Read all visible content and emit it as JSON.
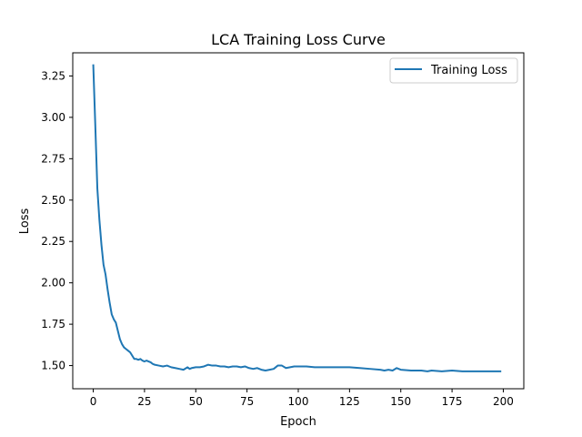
{
  "chart_data": {
    "type": "line",
    "title": "LCA Training Loss Curve",
    "xlabel": "Epoch",
    "ylabel": "Loss",
    "xlim": [
      -10,
      210
    ],
    "ylim": [
      1.36,
      3.39
    ],
    "xticks": [
      0,
      25,
      50,
      75,
      100,
      125,
      150,
      175,
      200
    ],
    "yticks": [
      1.5,
      1.75,
      2.0,
      2.25,
      2.5,
      2.75,
      3.0,
      3.25
    ],
    "xtick_labels": [
      "0",
      "25",
      "50",
      "75",
      "100",
      "125",
      "150",
      "175",
      "200"
    ],
    "ytick_labels": [
      "1.50",
      "1.75",
      "2.00",
      "2.25",
      "2.50",
      "2.75",
      "3.00",
      "3.25"
    ],
    "grid": false,
    "legend_position": "upper-right",
    "series": [
      {
        "name": "Training Loss",
        "color": "#1f77b4",
        "x": [
          0,
          1,
          2,
          3,
          4,
          5,
          6,
          7,
          8,
          9,
          10,
          11,
          12,
          13,
          14,
          15,
          16,
          17,
          18,
          19,
          20,
          21,
          22,
          23,
          24,
          25,
          26,
          27,
          28,
          29,
          30,
          32,
          34,
          36,
          38,
          40,
          42,
          44,
          46,
          47,
          48,
          50,
          52,
          54,
          56,
          58,
          60,
          62,
          64,
          66,
          68,
          70,
          72,
          74,
          76,
          78,
          80,
          82,
          84,
          86,
          88,
          90,
          92,
          94,
          96,
          98,
          100,
          104,
          108,
          112,
          116,
          120,
          125,
          130,
          135,
          140,
          142,
          144,
          146,
          148,
          150,
          155,
          160,
          163,
          165,
          170,
          175,
          180,
          185,
          190,
          195,
          199
        ],
        "values": [
          3.32,
          2.95,
          2.57,
          2.38,
          2.23,
          2.11,
          2.05,
          1.96,
          1.88,
          1.81,
          1.78,
          1.76,
          1.71,
          1.66,
          1.63,
          1.61,
          1.6,
          1.59,
          1.58,
          1.56,
          1.54,
          1.54,
          1.535,
          1.54,
          1.53,
          1.525,
          1.53,
          1.525,
          1.52,
          1.51,
          1.505,
          1.5,
          1.495,
          1.5,
          1.49,
          1.485,
          1.48,
          1.475,
          1.49,
          1.48,
          1.485,
          1.49,
          1.49,
          1.495,
          1.505,
          1.5,
          1.5,
          1.495,
          1.495,
          1.49,
          1.495,
          1.495,
          1.49,
          1.495,
          1.485,
          1.48,
          1.485,
          1.475,
          1.47,
          1.475,
          1.48,
          1.5,
          1.5,
          1.485,
          1.49,
          1.495,
          1.495,
          1.495,
          1.49,
          1.49,
          1.49,
          1.49,
          1.49,
          1.485,
          1.48,
          1.475,
          1.47,
          1.475,
          1.47,
          1.485,
          1.475,
          1.47,
          1.47,
          1.465,
          1.47,
          1.465,
          1.47,
          1.465,
          1.465,
          1.465,
          1.465,
          1.465
        ]
      }
    ]
  }
}
